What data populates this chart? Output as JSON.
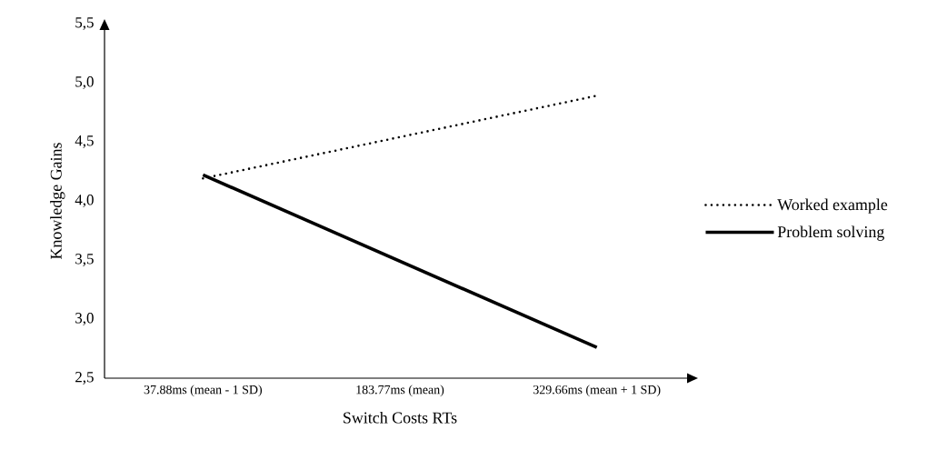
{
  "chart_data": {
    "type": "line",
    "xlabel": "Switch Costs RTs",
    "ylabel": "Knowledge Gains",
    "categories": [
      "37.88ms (mean - 1 SD)",
      "183.77ms (mean)",
      "329.66ms (mean + 1 SD)"
    ],
    "series": [
      {
        "name": "Worked example",
        "color": "#000000",
        "line_style": "dotted",
        "values": [
          4.19,
          null,
          4.89
        ]
      },
      {
        "name": "Problem solving",
        "color": "#000000",
        "line_style": "solid",
        "values": [
          4.22,
          null,
          2.76
        ]
      }
    ],
    "ylim": [
      2.5,
      5.5
    ],
    "yticks": [
      {
        "value": 2.5,
        "label": "2,5"
      },
      {
        "value": 3.0,
        "label": "3,0"
      },
      {
        "value": 3.5,
        "label": "3,5"
      },
      {
        "value": 4.0,
        "label": "4,0"
      },
      {
        "value": 4.5,
        "label": "4,5"
      },
      {
        "value": 5.0,
        "label": "5,0"
      },
      {
        "value": 5.5,
        "label": "5,5"
      }
    ],
    "legend": "right",
    "grid": false,
    "marker": "none"
  }
}
